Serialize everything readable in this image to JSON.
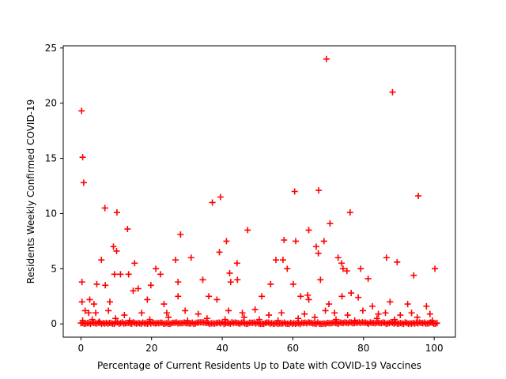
{
  "chart_data": {
    "type": "scatter",
    "xlabel": "Percentage of Current Residents Up to Date with COVID-19 Vaccines",
    "ylabel": "Residents Weekly Confirmed COVID-19",
    "xlim": [
      -5,
      106
    ],
    "ylim": [
      -1.2,
      25.2
    ],
    "xticks": [
      0,
      20,
      40,
      60,
      80,
      100
    ],
    "yticks": [
      0,
      5,
      10,
      15,
      20,
      25
    ],
    "grid": false,
    "legend": "none",
    "marker": "+",
    "color": "#ff0000",
    "series": [
      {
        "x": [
          0.2,
          0.5,
          0.8,
          69.5,
          88.2,
          0.3,
          39.5,
          37.2,
          60.5,
          67.3,
          95.5,
          6.8,
          10.2,
          76.2,
          70.5,
          28.2,
          13.2,
          47.2,
          64.5,
          41.2,
          57.5,
          60.8,
          68.8,
          39.2,
          9.2,
          10.1,
          66.6,
          67.2,
          72.8,
          86.5,
          5.8,
          26.8,
          31.2,
          15.2,
          44.2,
          55.2,
          57.2,
          73.8,
          89.5,
          9.5,
          21.2,
          22.5,
          11.2,
          13.5,
          42.1,
          58.4,
          67.8,
          74.2,
          75.3,
          79.2,
          81.3,
          94.2,
          100.2,
          34.5,
          44.3,
          62.2,
          64.2,
          76.5,
          0.3,
          4.5,
          6.9,
          14.8,
          16.2,
          19.8,
          27.5,
          36.2,
          42.4,
          53.7,
          60.1,
          2.5,
          3.7,
          8.2,
          18.8,
          23.5,
          27.5,
          38.5,
          51.2,
          64.5,
          70.2,
          73.9,
          78.5,
          82.5,
          87.5,
          92.5,
          97.8,
          1.2,
          2.2,
          4.2,
          7.8,
          12.3,
          17.2,
          24.3,
          29.5,
          33.2,
          41.8,
          45.7,
          49.3,
          53.2,
          56.8,
          63.3,
          69.2,
          71.8,
          75.5,
          79.8,
          84.2,
          86.2,
          90.4,
          93.6,
          98.8,
          0.5,
          3.2,
          5.2,
          9.8,
          13.8,
          19.5,
          24.8,
          30.2,
          35.7,
          40.8,
          46.2,
          50.5,
          55.8,
          61.5,
          66.2,
          72.2,
          77.5,
          83.8,
          88.8,
          95.2,
          99.5
        ],
        "y": [
          19.3,
          15.1,
          12.8,
          24.0,
          21.0,
          3.8,
          11.5,
          11.0,
          12.0,
          12.1,
          11.6,
          10.5,
          10.1,
          10.1,
          9.1,
          8.1,
          8.6,
          8.5,
          8.5,
          7.5,
          7.6,
          7.5,
          7.5,
          6.5,
          7.0,
          6.6,
          7.0,
          6.4,
          6.0,
          6.0,
          5.8,
          5.8,
          6.0,
          5.5,
          5.5,
          5.8,
          5.8,
          5.5,
          5.6,
          4.5,
          5.0,
          4.5,
          4.5,
          4.5,
          4.6,
          5.0,
          4.0,
          5.0,
          4.8,
          5.0,
          4.1,
          4.4,
          5.0,
          4.0,
          4.0,
          2.5,
          2.6,
          2.8,
          2.0,
          3.6,
          3.5,
          3.0,
          3.2,
          3.5,
          3.8,
          2.5,
          3.8,
          3.6,
          3.6,
          2.2,
          1.8,
          2.0,
          2.2,
          1.8,
          2.5,
          2.2,
          2.5,
          2.2,
          1.8,
          2.5,
          2.4,
          1.6,
          2.0,
          1.8,
          1.6,
          1.2,
          1.0,
          1.0,
          1.2,
          0.8,
          1.0,
          1.0,
          1.2,
          0.9,
          1.2,
          1.0,
          1.3,
          0.8,
          1.0,
          0.9,
          1.2,
          1.0,
          0.8,
          1.2,
          0.9,
          1.0,
          0.8,
          1.0,
          0.9,
          0.3,
          0.4,
          0.2,
          0.5,
          0.3,
          0.4,
          0.6,
          0.3,
          0.5,
          0.4,
          0.6,
          0.4,
          0.3,
          0.5,
          0.6,
          0.4,
          0.3,
          0.5,
          0.4,
          0.6,
          0.3
        ],
        "baseline_range": [
          0,
          101
        ],
        "baseline_value": 0
      }
    ]
  }
}
